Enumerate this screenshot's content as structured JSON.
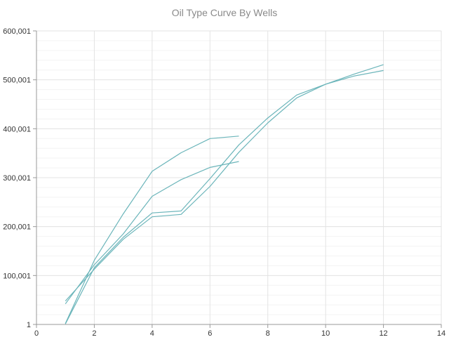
{
  "chart_data": {
    "type": "line",
    "title": "Oil Type Curve By Wells",
    "xlabel": "",
    "ylabel": "",
    "xlim": [
      0,
      14
    ],
    "ylim": [
      1,
      600001
    ],
    "x_ticks": [
      "0",
      "2",
      "4",
      "6",
      "8",
      "10",
      "12",
      "14"
    ],
    "y_ticks": [
      "1",
      "100,001",
      "200,001",
      "300,001",
      "400,001",
      "500,001",
      "600,001"
    ],
    "grid": true,
    "legend": "none",
    "series": [
      {
        "x": [
          1,
          2,
          3,
          4,
          5,
          6,
          7
        ],
        "y": [
          42000,
          122000,
          185000,
          262000,
          296000,
          321000,
          333000
        ]
      },
      {
        "x": [
          1,
          2,
          3,
          4,
          5,
          6,
          7
        ],
        "y": [
          2000,
          131000,
          226000,
          313000,
          351000,
          380000,
          385000
        ]
      },
      {
        "x": [
          1,
          2,
          3,
          4,
          5,
          6,
          7,
          8,
          9,
          10,
          11,
          12
        ],
        "y": [
          48000,
          113000,
          174000,
          220000,
          225000,
          282000,
          352000,
          412000,
          463000,
          491000,
          508000,
          519000
        ]
      },
      {
        "x": [
          1,
          2,
          3,
          4,
          5,
          6,
          7,
          8,
          9,
          10,
          11,
          12
        ],
        "y": [
          1000,
          116000,
          178000,
          228000,
          232000,
          298000,
          367000,
          422000,
          469000,
          491000,
          512000,
          531000
        ]
      }
    ],
    "colors": {
      "line": "#6bb5ba",
      "grid_major": "#e3e3e3",
      "grid_minor": "#f3f3f3",
      "axis": "#999999"
    }
  }
}
